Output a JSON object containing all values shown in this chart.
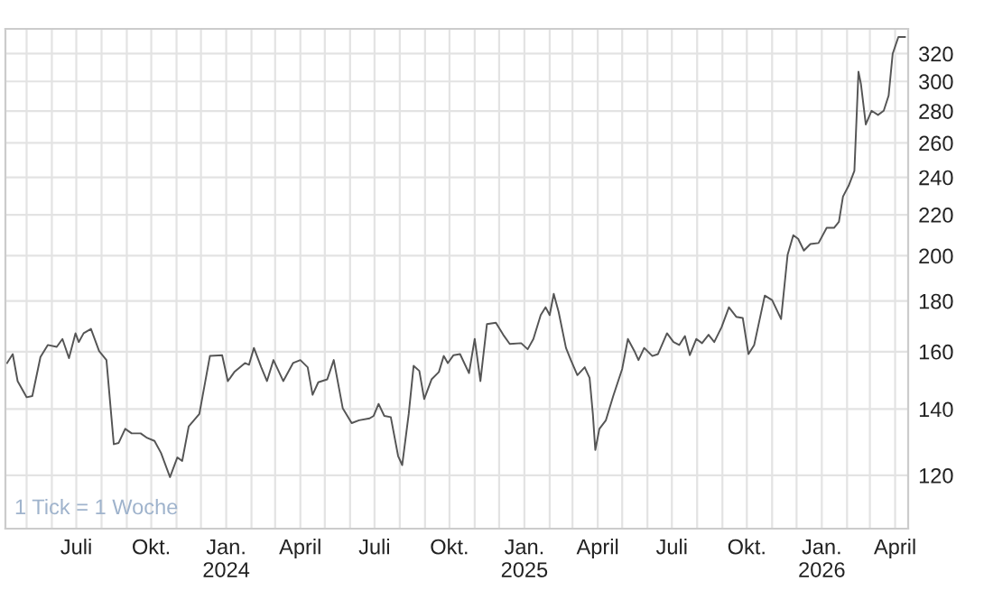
{
  "chart_data": {
    "type": "line",
    "annotations": [
      "1 Tick = 1 Woche"
    ],
    "x": [
      "2023-04-07",
      "2023-04-14",
      "2023-04-20",
      "2023-05-01",
      "2023-05-08",
      "2023-05-18",
      "2023-05-27",
      "2023-06-07",
      "2023-06-14",
      "2023-06-22",
      "2023-06-30",
      "2023-07-04",
      "2023-07-10",
      "2023-07-19",
      "2023-07-29",
      "2023-08-07",
      "2023-08-16",
      "2023-08-22",
      "2023-08-30",
      "2023-09-07",
      "2023-09-18",
      "2023-09-26",
      "2023-10-05",
      "2023-10-13",
      "2023-10-24",
      "2023-11-02",
      "2023-11-08",
      "2023-11-16",
      "2023-11-29",
      "2023-12-12",
      "2023-12-27",
      "2024-01-03",
      "2024-01-11",
      "2024-01-24",
      "2024-01-29",
      "2024-02-04",
      "2024-02-13",
      "2024-02-20",
      "2024-02-28",
      "2024-03-11",
      "2024-03-23",
      "2024-04-01",
      "2024-04-10",
      "2024-04-16",
      "2024-04-23",
      "2024-05-04",
      "2024-05-12",
      "2024-05-23",
      "2024-06-03",
      "2024-06-12",
      "2024-06-25",
      "2024-06-30",
      "2024-07-06",
      "2024-07-13",
      "2024-07-21",
      "2024-07-30",
      "2024-08-04",
      "2024-08-12",
      "2024-08-18",
      "2024-08-25",
      "2024-08-31",
      "2024-09-09",
      "2024-09-18",
      "2024-09-24",
      "2024-09-29",
      "2024-10-06",
      "2024-10-14",
      "2024-10-25",
      "2024-11-01",
      "2024-11-08",
      "2024-11-16",
      "2024-11-27",
      "2024-12-06",
      "2024-12-14",
      "2024-12-28",
      "2025-01-05",
      "2025-01-12",
      "2025-01-21",
      "2025-01-27",
      "2025-02-01",
      "2025-02-06",
      "2025-02-12",
      "2025-02-21",
      "2025-02-27",
      "2025-03-07",
      "2025-03-16",
      "2025-03-22",
      "2025-03-26",
      "2025-03-29",
      "2025-04-03",
      "2025-04-11",
      "2025-04-20",
      "2025-05-01",
      "2025-05-08",
      "2025-05-16",
      "2025-05-21",
      "2025-05-28",
      "2025-06-07",
      "2025-06-14",
      "2025-06-25",
      "2025-07-03",
      "2025-07-10",
      "2025-07-17",
      "2025-07-23",
      "2025-07-31",
      "2025-08-07",
      "2025-08-15",
      "2025-08-22",
      "2025-08-31",
      "2025-09-09",
      "2025-09-18",
      "2025-09-26",
      "2025-10-03",
      "2025-10-10",
      "2025-10-23",
      "2025-11-01",
      "2025-11-12",
      "2025-11-20",
      "2025-11-27",
      "2025-12-03",
      "2025-12-10",
      "2025-12-18",
      "2025-12-28",
      "2026-01-07",
      "2026-01-16",
      "2026-01-22",
      "2026-01-27",
      "2026-02-03",
      "2026-02-10",
      "2026-02-15",
      "2026-02-18",
      "2026-02-24",
      "2026-03-03",
      "2026-03-11",
      "2026-03-18",
      "2026-03-24",
      "2026-03-29",
      "2026-04-05",
      "2026-04-13"
    ],
    "series": [
      {
        "color": "#555555",
        "values": [
          155.8,
          159.1,
          149.4,
          143.9,
          144.3,
          158,
          162.5,
          161.8,
          164.8,
          157.6,
          167,
          163.6,
          167,
          168.7,
          160.2,
          156.9,
          129,
          129.4,
          133.7,
          132.3,
          132.3,
          130.9,
          130,
          126.4,
          119.5,
          125.1,
          124.1,
          134.5,
          138.4,
          158.4,
          158.7,
          149.4,
          152.6,
          155.8,
          155.2,
          161.4,
          154.3,
          149.4,
          156.9,
          149.4,
          155.8,
          156.9,
          154.3,
          144.7,
          149,
          150,
          156.9,
          140.3,
          135.5,
          136.4,
          137,
          137.8,
          141.7,
          137.8,
          137.4,
          125.5,
          122.9,
          138.4,
          154.8,
          153,
          143.3,
          150,
          152.6,
          158.4,
          155.8,
          158.7,
          159.1,
          152.2,
          164.8,
          149.4,
          170.6,
          171.1,
          166.4,
          162.9,
          163.2,
          160.9,
          164.8,
          174.2,
          177.4,
          174.2,
          183,
          175.5,
          161.4,
          156.9,
          151.5,
          154.3,
          150.5,
          138.4,
          127.3,
          133.7,
          136.4,
          144.3,
          153.7,
          164.8,
          160.2,
          156.9,
          161.4,
          158.4,
          159.1,
          167,
          163.6,
          162.5,
          165.9,
          158.7,
          164.8,
          163.2,
          166.4,
          163.6,
          169.4,
          177.4,
          173.5,
          173,
          159.1,
          162.5,
          182.3,
          180.4,
          172.6,
          200.4,
          209.8,
          208,
          202.4,
          205.5,
          206,
          213.4,
          213.4,
          216.4,
          229.5,
          235.4,
          243.7,
          306.8,
          298.3,
          271.4,
          280.2,
          277.5,
          280.2,
          290.2,
          320,
          332.7,
          332.7
        ]
      }
    ],
    "xlim": [
      "2023-04-05",
      "2026-04-17"
    ],
    "xticks": [
      {
        "value": "2023-05-01",
        "label": null
      },
      {
        "value": "2023-06-01",
        "label": null
      },
      {
        "value": "2023-07-01",
        "label": "Juli"
      },
      {
        "value": "2023-08-01",
        "label": null
      },
      {
        "value": "2023-09-01",
        "label": null
      },
      {
        "value": "2023-10-01",
        "label": "Okt."
      },
      {
        "value": "2023-11-01",
        "label": null
      },
      {
        "value": "2023-12-01",
        "label": null
      },
      {
        "value": "2024-01-01",
        "label": "Jan.\n2024"
      },
      {
        "value": "2024-02-01",
        "label": null
      },
      {
        "value": "2024-03-01",
        "label": null
      },
      {
        "value": "2024-04-01",
        "label": "April"
      },
      {
        "value": "2024-05-01",
        "label": null
      },
      {
        "value": "2024-06-01",
        "label": null
      },
      {
        "value": "2024-07-01",
        "label": "Juli"
      },
      {
        "value": "2024-08-01",
        "label": null
      },
      {
        "value": "2024-09-01",
        "label": null
      },
      {
        "value": "2024-10-01",
        "label": "Okt."
      },
      {
        "value": "2024-11-01",
        "label": null
      },
      {
        "value": "2024-12-01",
        "label": null
      },
      {
        "value": "2025-01-01",
        "label": "Jan.\n2025"
      },
      {
        "value": "2025-02-01",
        "label": null
      },
      {
        "value": "2025-03-01",
        "label": null
      },
      {
        "value": "2025-04-01",
        "label": "April"
      },
      {
        "value": "2025-05-01",
        "label": null
      },
      {
        "value": "2025-06-01",
        "label": null
      },
      {
        "value": "2025-07-01",
        "label": "Juli"
      },
      {
        "value": "2025-08-01",
        "label": null
      },
      {
        "value": "2025-09-01",
        "label": null
      },
      {
        "value": "2025-10-01",
        "label": "Okt."
      },
      {
        "value": "2025-11-01",
        "label": null
      },
      {
        "value": "2025-12-01",
        "label": null
      },
      {
        "value": "2026-01-01",
        "label": "Jan.\n2026"
      },
      {
        "value": "2026-02-01",
        "label": null
      },
      {
        "value": "2026-03-01",
        "label": null
      },
      {
        "value": "2026-04-01",
        "label": "April"
      }
    ],
    "ylim": [
      106,
      339
    ],
    "yticks": [
      120,
      140,
      160,
      180,
      200,
      220,
      240,
      260,
      280,
      300,
      320
    ],
    "log": true,
    "grid": true
  }
}
